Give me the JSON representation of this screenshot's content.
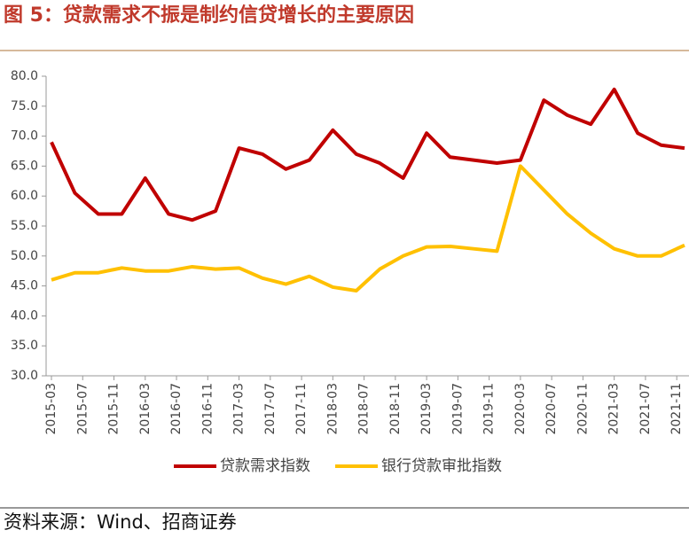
{
  "chart_data": {
    "type": "line",
    "title": "图 5：贷款需求不振是制约信贷增长的主要原因",
    "source": "资料来源：Wind、招商证券",
    "x": [
      "2015-03",
      "2015-06",
      "2015-09",
      "2015-12",
      "2016-03",
      "2016-06",
      "2016-09",
      "2016-12",
      "2017-03",
      "2017-06",
      "2017-09",
      "2017-12",
      "2018-03",
      "2018-06",
      "2018-09",
      "2018-12",
      "2019-03",
      "2019-06",
      "2019-09",
      "2019-12",
      "2020-03",
      "2020-06",
      "2020-09",
      "2020-12",
      "2021-03",
      "2021-06",
      "2021-09",
      "2021-12"
    ],
    "xlim": [
      "2015-03",
      "2021-12"
    ],
    "xticks": [
      "2015-03",
      "2015-07",
      "2015-11",
      "2016-03",
      "2016-07",
      "2016-11",
      "2017-03",
      "2017-07",
      "2017-11",
      "2018-03",
      "2018-07",
      "2018-11",
      "2019-03",
      "2019-07",
      "2019-11",
      "2020-03",
      "2020-07",
      "2020-11",
      "2021-03",
      "2021-07",
      "2021-11"
    ],
    "series": [
      {
        "name": "贷款需求指数",
        "color": "#C00000",
        "values": [
          69,
          60.5,
          57,
          57,
          63,
          57,
          56,
          57.5,
          68,
          67,
          64.5,
          66,
          71,
          67,
          65.5,
          63,
          70.5,
          66.5,
          66,
          65.5,
          66,
          76,
          73.5,
          72,
          77.8,
          70.5,
          68.5,
          68
        ]
      },
      {
        "name": "银行贷款审批指数",
        "color": "#FFC000",
        "values": [
          46,
          47.2,
          47.2,
          48,
          47.5,
          47.5,
          48.2,
          47.8,
          48,
          46.3,
          45.3,
          46.6,
          44.8,
          44.2,
          47.8,
          50,
          51.5,
          51.6,
          51.2,
          50.8,
          65,
          61,
          57,
          53.8,
          51.2,
          50,
          50,
          51.8
        ]
      }
    ],
    "ylim": [
      30,
      80
    ],
    "yticks": [
      {
        "value": 30,
        "label": "30.0"
      },
      {
        "value": 35,
        "label": "35.0"
      },
      {
        "value": 40,
        "label": "40.0"
      },
      {
        "value": 45,
        "label": "45.0"
      },
      {
        "value": 50,
        "label": "50.0"
      },
      {
        "value": 55,
        "label": "55.0"
      },
      {
        "value": 60,
        "label": "60.0"
      },
      {
        "value": 65,
        "label": "65.0"
      },
      {
        "value": 70,
        "label": "70.0"
      },
      {
        "value": 75,
        "label": "75.0"
      },
      {
        "value": 80,
        "label": "80.0"
      }
    ],
    "legend": "bottom"
  }
}
